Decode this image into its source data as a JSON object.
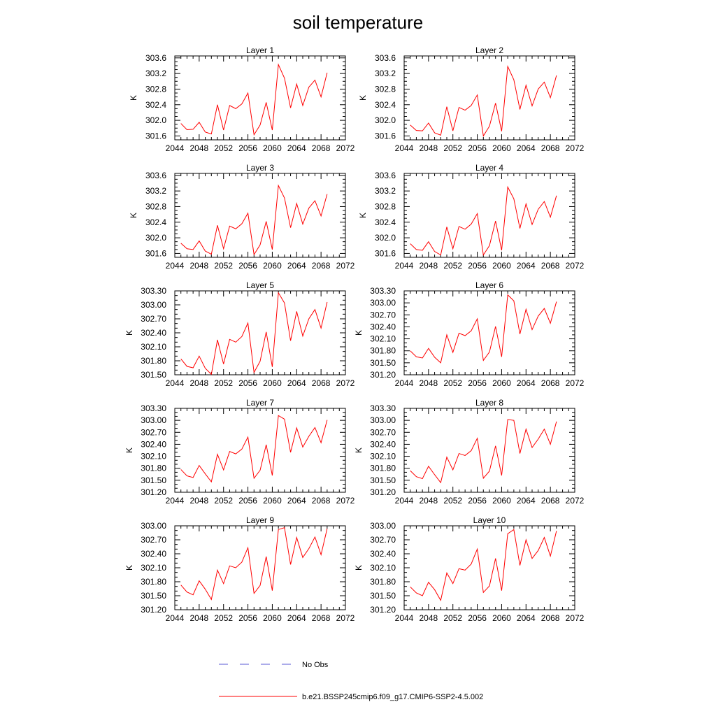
{
  "figure": {
    "title": "soil temperature"
  },
  "legend": {
    "items": [
      {
        "label": "No Obs",
        "color": "#5a5ad6",
        "style": "dashed"
      },
      {
        "label": "b.e21.BSSP245cmip6.f09_g17.CMIP6-SSP2-4.5.002",
        "color": "#ff0000",
        "style": "solid"
      }
    ]
  },
  "chart_data": [
    {
      "type": "line",
      "title": "Layer 1",
      "xlabel": "",
      "ylabel": "K",
      "xlim": [
        2044,
        2072
      ],
      "xticks": [
        2044,
        2048,
        2052,
        2056,
        2060,
        2064,
        2068,
        2072
      ],
      "ylim": [
        301.5,
        303.65
      ],
      "yticks": [
        301.6,
        302.0,
        302.4,
        302.8,
        303.2,
        303.6
      ],
      "ytick_decimals": 1,
      "series": [
        {
          "name": "b.e21.BSSP245cmip6.f09_g17.CMIP6-SSP2-4.5.002",
          "color": "#ff0000",
          "x": [
            2045,
            2046,
            2047,
            2048,
            2049,
            2050,
            2051,
            2052,
            2053,
            2054,
            2055,
            2056,
            2057,
            2058,
            2059,
            2060,
            2061,
            2062,
            2063,
            2064,
            2065,
            2066,
            2067,
            2068,
            2069
          ],
          "y": [
            301.92,
            301.76,
            301.77,
            301.95,
            301.7,
            301.65,
            302.4,
            301.75,
            302.38,
            302.3,
            302.42,
            302.7,
            301.63,
            301.88,
            302.46,
            301.75,
            303.43,
            303.08,
            302.32,
            302.93,
            302.38,
            302.85,
            303.03,
            302.6,
            303.22
          ]
        }
      ]
    },
    {
      "type": "line",
      "title": "Layer 2",
      "xlabel": "",
      "ylabel": "K",
      "xlim": [
        2044,
        2072
      ],
      "xticks": [
        2044,
        2048,
        2052,
        2056,
        2060,
        2064,
        2068,
        2072
      ],
      "ylim": [
        301.5,
        303.65
      ],
      "yticks": [
        301.6,
        302.0,
        302.4,
        302.8,
        303.2,
        303.6
      ],
      "ytick_decimals": 1,
      "series": [
        {
          "name": "b.e21.BSSP245cmip6.f09_g17.CMIP6-SSP2-4.5.002",
          "color": "#ff0000",
          "x": [
            2045,
            2046,
            2047,
            2048,
            2049,
            2050,
            2051,
            2052,
            2053,
            2054,
            2055,
            2056,
            2057,
            2058,
            2059,
            2060,
            2061,
            2062,
            2063,
            2064,
            2065,
            2066,
            2067,
            2068,
            2069
          ],
          "y": [
            301.88,
            301.74,
            301.73,
            301.93,
            301.68,
            301.62,
            302.35,
            301.73,
            302.33,
            302.26,
            302.38,
            302.65,
            301.6,
            301.85,
            302.44,
            301.72,
            303.38,
            303.04,
            302.28,
            302.9,
            302.37,
            302.8,
            302.98,
            302.58,
            303.15
          ]
        }
      ]
    },
    {
      "type": "line",
      "title": "Layer 3",
      "xlabel": "",
      "ylabel": "K",
      "xlim": [
        2044,
        2072
      ],
      "xticks": [
        2044,
        2048,
        2052,
        2056,
        2060,
        2064,
        2068,
        2072
      ],
      "ylim": [
        301.5,
        303.65
      ],
      "yticks": [
        301.6,
        302.0,
        302.4,
        302.8,
        303.2,
        303.6
      ],
      "ytick_decimals": 1,
      "series": [
        {
          "name": "b.e21.BSSP245cmip6.f09_g17.CMIP6-SSP2-4.5.002",
          "color": "#ff0000",
          "x": [
            2045,
            2046,
            2047,
            2048,
            2049,
            2050,
            2051,
            2052,
            2053,
            2054,
            2055,
            2056,
            2057,
            2058,
            2059,
            2060,
            2061,
            2062,
            2063,
            2064,
            2065,
            2066,
            2067,
            2068,
            2069
          ],
          "y": [
            301.86,
            301.72,
            301.7,
            301.92,
            301.66,
            301.58,
            302.32,
            301.72,
            302.3,
            302.23,
            302.36,
            302.63,
            301.57,
            301.82,
            302.42,
            301.7,
            303.34,
            303.02,
            302.26,
            302.88,
            302.35,
            302.76,
            302.95,
            302.56,
            303.12
          ]
        }
      ]
    },
    {
      "type": "line",
      "title": "Layer 4",
      "xlabel": "",
      "ylabel": "K",
      "xlim": [
        2044,
        2072
      ],
      "xticks": [
        2044,
        2048,
        2052,
        2056,
        2060,
        2064,
        2068,
        2072
      ],
      "ylim": [
        301.5,
        303.65
      ],
      "yticks": [
        301.6,
        302.0,
        302.4,
        302.8,
        303.2,
        303.6
      ],
      "ytick_decimals": 1,
      "series": [
        {
          "name": "b.e21.BSSP245cmip6.f09_g17.CMIP6-SSP2-4.5.002",
          "color": "#ff0000",
          "x": [
            2045,
            2046,
            2047,
            2048,
            2049,
            2050,
            2051,
            2052,
            2053,
            2054,
            2055,
            2056,
            2057,
            2058,
            2059,
            2060,
            2061,
            2062,
            2063,
            2064,
            2065,
            2066,
            2067,
            2068,
            2069
          ],
          "y": [
            301.85,
            301.7,
            301.68,
            301.9,
            301.65,
            301.56,
            302.28,
            301.72,
            302.29,
            302.22,
            302.35,
            302.62,
            301.56,
            301.8,
            302.43,
            301.68,
            303.3,
            303.0,
            302.24,
            302.87,
            302.34,
            302.73,
            302.93,
            302.53,
            303.08
          ]
        }
      ]
    },
    {
      "type": "line",
      "title": "Layer 5",
      "xlabel": "",
      "ylabel": "K",
      "xlim": [
        2044,
        2072
      ],
      "xticks": [
        2044,
        2048,
        2052,
        2056,
        2060,
        2064,
        2068,
        2072
      ],
      "ylim": [
        301.5,
        303.3
      ],
      "yticks": [
        301.5,
        301.8,
        302.1,
        302.4,
        302.7,
        303.0,
        303.3
      ],
      "ytick_decimals": 2,
      "series": [
        {
          "name": "b.e21.BSSP245cmip6.f09_g17.CMIP6-SSP2-4.5.002",
          "color": "#ff0000",
          "x": [
            2045,
            2046,
            2047,
            2048,
            2049,
            2050,
            2051,
            2052,
            2053,
            2054,
            2055,
            2056,
            2057,
            2058,
            2059,
            2060,
            2061,
            2062,
            2063,
            2064,
            2065,
            2066,
            2067,
            2068,
            2069
          ],
          "y": [
            301.84,
            301.68,
            301.65,
            301.9,
            301.64,
            301.51,
            302.25,
            301.73,
            302.26,
            302.2,
            302.32,
            302.61,
            301.55,
            301.79,
            302.42,
            301.67,
            303.26,
            303.04,
            302.23,
            302.86,
            302.33,
            302.7,
            302.9,
            302.5,
            303.06
          ]
        }
      ]
    },
    {
      "type": "line",
      "title": "Layer 6",
      "xlabel": "",
      "ylabel": "K",
      "xlim": [
        2044,
        2072
      ],
      "xticks": [
        2044,
        2048,
        2052,
        2056,
        2060,
        2064,
        2068,
        2072
      ],
      "ylim": [
        301.2,
        303.3
      ],
      "yticks": [
        301.2,
        301.5,
        301.8,
        302.1,
        302.4,
        302.7,
        303.0,
        303.3
      ],
      "ytick_decimals": 2,
      "series": [
        {
          "name": "b.e21.BSSP245cmip6.f09_g17.CMIP6-SSP2-4.5.002",
          "color": "#ff0000",
          "x": [
            2045,
            2046,
            2047,
            2048,
            2049,
            2050,
            2051,
            2052,
            2053,
            2054,
            2055,
            2056,
            2057,
            2058,
            2059,
            2060,
            2061,
            2062,
            2063,
            2064,
            2065,
            2066,
            2067,
            2068,
            2069
          ],
          "y": [
            301.8,
            301.65,
            301.62,
            301.86,
            301.64,
            301.5,
            302.2,
            301.76,
            302.24,
            302.18,
            302.3,
            302.6,
            301.56,
            301.77,
            302.41,
            301.65,
            303.2,
            303.05,
            302.22,
            302.84,
            302.33,
            302.67,
            302.86,
            302.49,
            303.03
          ]
        }
      ]
    },
    {
      "type": "line",
      "title": "Layer 7",
      "xlabel": "",
      "ylabel": "K",
      "xlim": [
        2044,
        2072
      ],
      "xticks": [
        2044,
        2048,
        2052,
        2056,
        2060,
        2064,
        2068,
        2072
      ],
      "ylim": [
        301.2,
        303.3
      ],
      "yticks": [
        301.2,
        301.5,
        301.8,
        302.1,
        302.4,
        302.7,
        303.0,
        303.3
      ],
      "ytick_decimals": 2,
      "series": [
        {
          "name": "b.e21.BSSP245cmip6.f09_g17.CMIP6-SSP2-4.5.002",
          "color": "#ff0000",
          "x": [
            2045,
            2046,
            2047,
            2048,
            2049,
            2050,
            2051,
            2052,
            2053,
            2054,
            2055,
            2056,
            2057,
            2058,
            2059,
            2060,
            2061,
            2062,
            2063,
            2064,
            2065,
            2066,
            2067,
            2068,
            2069
          ],
          "y": [
            301.77,
            301.61,
            301.57,
            301.87,
            301.66,
            301.46,
            302.15,
            301.76,
            302.22,
            302.16,
            302.28,
            302.58,
            301.55,
            301.75,
            302.39,
            301.62,
            303.12,
            303.03,
            302.2,
            302.81,
            302.33,
            302.6,
            302.82,
            302.44,
            303.01
          ]
        }
      ]
    },
    {
      "type": "line",
      "title": "Layer 8",
      "xlabel": "",
      "ylabel": "K",
      "xlim": [
        2044,
        2072
      ],
      "xticks": [
        2044,
        2048,
        2052,
        2056,
        2060,
        2064,
        2068,
        2072
      ],
      "ylim": [
        301.2,
        303.3
      ],
      "yticks": [
        301.2,
        301.5,
        301.8,
        302.1,
        302.4,
        302.7,
        303.0,
        303.3
      ],
      "ytick_decimals": 2,
      "series": [
        {
          "name": "b.e21.BSSP245cmip6.f09_g17.CMIP6-SSP2-4.5.002",
          "color": "#ff0000",
          "x": [
            2045,
            2046,
            2047,
            2048,
            2049,
            2050,
            2051,
            2052,
            2053,
            2054,
            2055,
            2056,
            2057,
            2058,
            2059,
            2060,
            2061,
            2062,
            2063,
            2064,
            2065,
            2066,
            2067,
            2068,
            2069
          ],
          "y": [
            301.74,
            301.59,
            301.54,
            301.85,
            301.64,
            301.44,
            302.08,
            301.76,
            302.17,
            302.12,
            302.24,
            302.55,
            301.55,
            301.73,
            302.36,
            301.62,
            303.02,
            303.0,
            302.17,
            302.78,
            302.32,
            302.53,
            302.78,
            302.4,
            302.97
          ]
        }
      ]
    },
    {
      "type": "line",
      "title": "Layer 9",
      "xlabel": "",
      "ylabel": "K",
      "xlim": [
        2044,
        2072
      ],
      "xticks": [
        2044,
        2048,
        2052,
        2056,
        2060,
        2064,
        2068,
        2072
      ],
      "ylim": [
        301.2,
        303.0
      ],
      "yticks": [
        301.2,
        301.5,
        301.8,
        302.1,
        302.4,
        302.7,
        303.0
      ],
      "ytick_decimals": 2,
      "series": [
        {
          "name": "b.e21.BSSP245cmip6.f09_g17.CMIP6-SSP2-4.5.002",
          "color": "#ff0000",
          "x": [
            2045,
            2046,
            2047,
            2048,
            2049,
            2050,
            2051,
            2052,
            2053,
            2054,
            2055,
            2056,
            2057,
            2058,
            2059,
            2060,
            2061,
            2062,
            2063,
            2064,
            2065,
            2066,
            2067,
            2068,
            2069
          ],
          "y": [
            301.73,
            301.58,
            301.52,
            301.82,
            301.64,
            301.42,
            302.05,
            301.76,
            302.14,
            302.1,
            302.22,
            302.53,
            301.55,
            301.72,
            302.34,
            301.61,
            302.92,
            302.96,
            302.17,
            302.75,
            302.32,
            302.51,
            302.76,
            302.38,
            302.94
          ]
        }
      ]
    },
    {
      "type": "line",
      "title": "Layer 10",
      "xlabel": "",
      "ylabel": "K",
      "xlim": [
        2044,
        2072
      ],
      "xticks": [
        2044,
        2048,
        2052,
        2056,
        2060,
        2064,
        2068,
        2072
      ],
      "ylim": [
        301.2,
        303.0
      ],
      "yticks": [
        301.2,
        301.5,
        301.8,
        302.1,
        302.4,
        302.7,
        303.0
      ],
      "ytick_decimals": 2,
      "series": [
        {
          "name": "b.e21.BSSP245cmip6.f09_g17.CMIP6-SSP2-4.5.002",
          "color": "#ff0000",
          "x": [
            2045,
            2046,
            2047,
            2048,
            2049,
            2050,
            2051,
            2052,
            2053,
            2054,
            2055,
            2056,
            2057,
            2058,
            2059,
            2060,
            2061,
            2062,
            2063,
            2064,
            2065,
            2066,
            2067,
            2068,
            2069
          ],
          "y": [
            301.69,
            301.56,
            301.5,
            301.79,
            301.63,
            301.4,
            301.99,
            301.76,
            302.08,
            302.05,
            302.18,
            302.5,
            301.57,
            301.71,
            302.3,
            301.61,
            302.83,
            302.92,
            302.15,
            302.7,
            302.3,
            302.47,
            302.75,
            302.35,
            302.89
          ]
        }
      ]
    }
  ]
}
